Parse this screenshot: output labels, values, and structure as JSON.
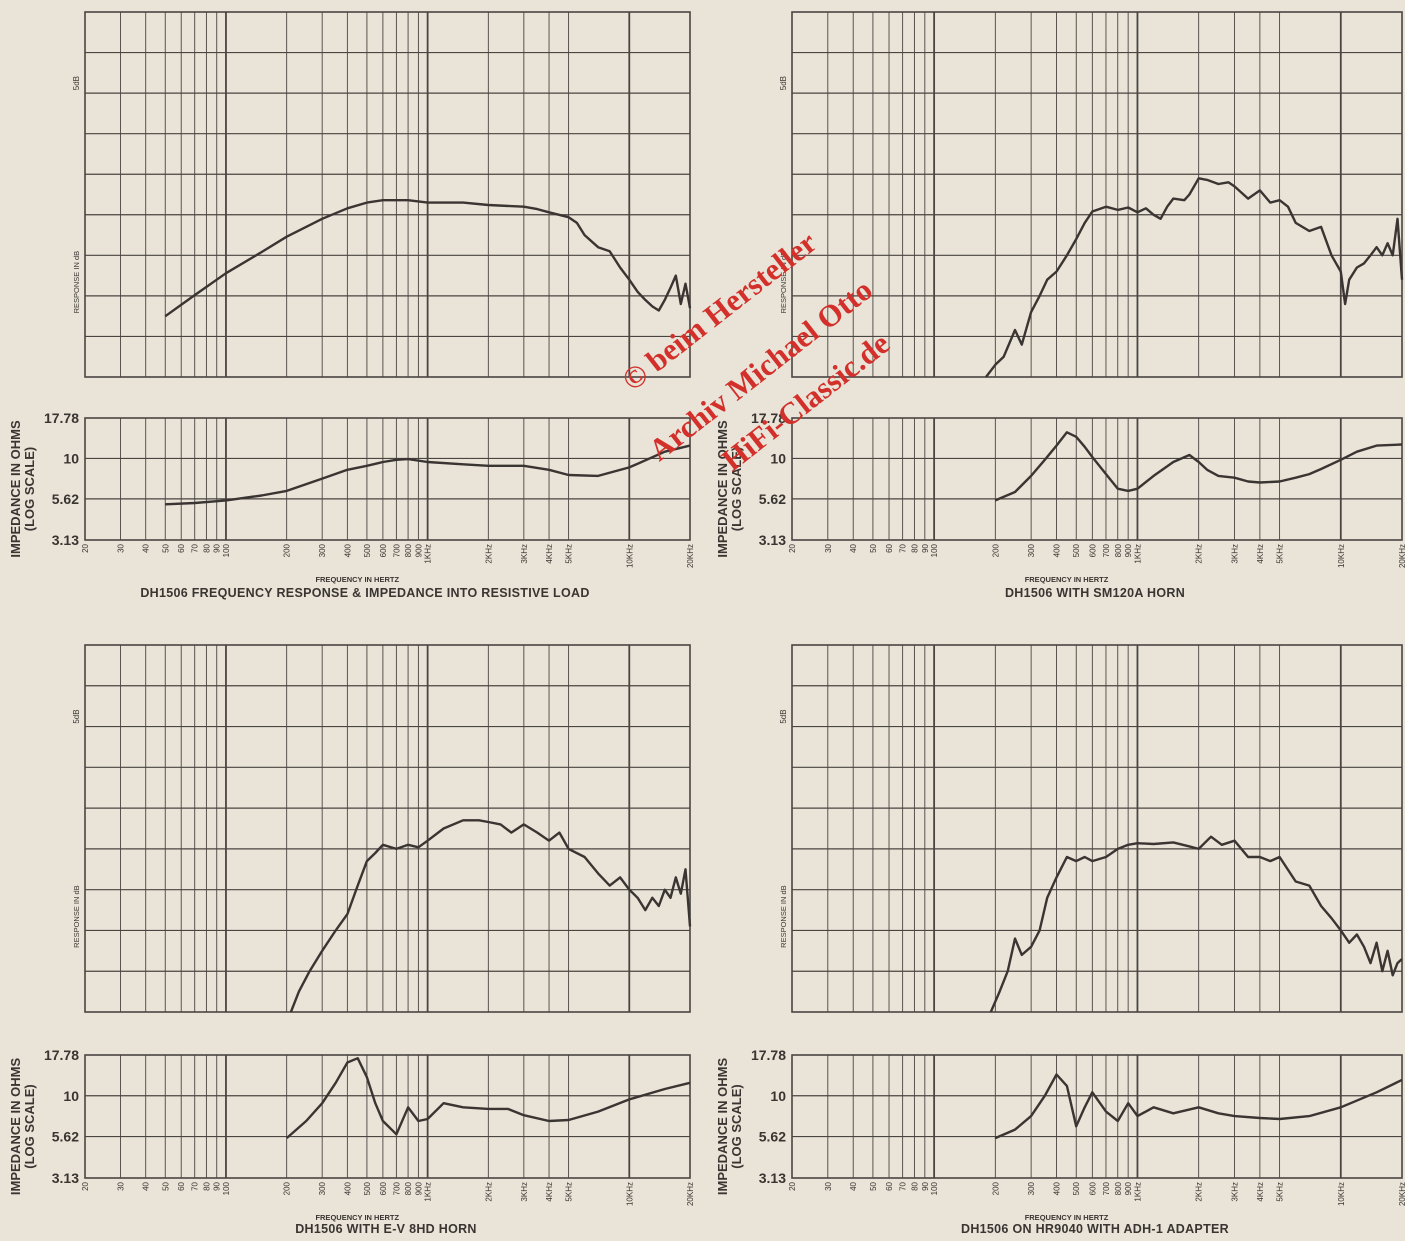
{
  "labels": {
    "freq_axis": "FREQUENCY IN HERTZ",
    "response_axis": "RESPONSE IN dB",
    "five_db": "5dB",
    "imp_axis_line1": "IMPEDANCE IN OHMS",
    "imp_axis_line2": "(LOG SCALE)"
  },
  "watermark": {
    "line1": "© beim Hersteller",
    "line2": "Archiv Michael Otto",
    "line3": "HiFi-Classic.de"
  },
  "colors": {
    "paper": "#e9e4d7",
    "grid": "#4a4442",
    "curve": "#3a3432",
    "watermark": "#d3302b"
  },
  "chart_data": [
    {
      "type": "line",
      "title": "DH1506 FREQUENCY RESPONSE & IMPEDANCE INTO RESISTIVE LOAD",
      "xscale": "log",
      "x_ticks": [
        20,
        30,
        40,
        50,
        60,
        70,
        80,
        90,
        100,
        200,
        300,
        400,
        500,
        600,
        700,
        800,
        900,
        1000,
        2000,
        3000,
        4000,
        5000,
        10000,
        20000
      ],
      "x_tick_labels": [
        "20",
        "30",
        "40",
        "50",
        "60",
        "70",
        "80",
        "90",
        "100",
        "200",
        "300",
        "400",
        "500",
        "600",
        "700",
        "800",
        "900",
        "1KHz",
        "2KHz",
        "3KHz",
        "4KHz",
        "5KHz",
        "10KHz",
        "20KHz"
      ],
      "xlim": [
        20,
        20000
      ],
      "response": {
        "ylabel": "RESPONSE IN dB",
        "divisions_5db": 7,
        "x": [
          50,
          70,
          100,
          150,
          200,
          300,
          400,
          500,
          600,
          700,
          800,
          1000,
          1500,
          2000,
          3000,
          3500,
          4000,
          5000,
          5500,
          6000,
          7000,
          8000,
          9000,
          10000,
          11000,
          12000,
          13000,
          14000,
          15000,
          16000,
          17000,
          18000,
          19000,
          20000
        ],
        "y": [
          7.5,
          10.1,
          12.8,
          15.4,
          17.3,
          19.5,
          20.8,
          21.5,
          21.8,
          21.8,
          21.8,
          21.5,
          21.5,
          21.2,
          21.0,
          20.7,
          20.3,
          19.7,
          19.0,
          17.5,
          16.0,
          15.5,
          13.5,
          12.0,
          10.5,
          9.5,
          8.7,
          8.2,
          9.5,
          11.0,
          12.5,
          9.0,
          11.5,
          8.5
        ]
      },
      "impedance": {
        "ylabel": "IMPEDANCE IN OHMS (LOG SCALE)",
        "y_ticks": [
          3.13,
          5.62,
          10,
          17.78
        ],
        "x": [
          50,
          70,
          100,
          150,
          200,
          300,
          400,
          500,
          600,
          700,
          800,
          1000,
          1500,
          2000,
          3000,
          4000,
          5000,
          7000,
          10000,
          15000,
          20000
        ],
        "y": [
          5.2,
          5.3,
          5.5,
          5.9,
          6.3,
          7.5,
          8.5,
          9.0,
          9.5,
          9.8,
          9.9,
          9.5,
          9.2,
          9.0,
          9.0,
          8.5,
          7.9,
          7.8,
          8.8,
          11.0,
          12.0
        ]
      }
    },
    {
      "type": "line",
      "title": "DH1506 WITH SM120A HORN",
      "xscale": "log",
      "x_ticks": [
        20,
        30,
        40,
        50,
        60,
        70,
        80,
        90,
        100,
        200,
        300,
        400,
        500,
        600,
        700,
        800,
        900,
        1000,
        2000,
        3000,
        4000,
        5000,
        10000,
        20000
      ],
      "x_tick_labels": [
        "20",
        "30",
        "40",
        "50",
        "60",
        "70",
        "80",
        "90",
        "100",
        "200",
        "300",
        "400",
        "500",
        "600",
        "700",
        "800",
        "900",
        "1KHz",
        "2KHz",
        "3KHz",
        "4KHz",
        "5KHz",
        "10KHz",
        "20KHz"
      ],
      "xlim": [
        20,
        20000
      ],
      "response": {
        "ylabel": "RESPONSE IN dB",
        "divisions_5db": 7,
        "x": [
          180,
          200,
          220,
          250,
          270,
          300,
          330,
          360,
          400,
          450,
          500,
          550,
          600,
          700,
          800,
          900,
          1000,
          1100,
          1200,
          1300,
          1400,
          1500,
          1700,
          1800,
          2000,
          2200,
          2500,
          2800,
          3000,
          3500,
          4000,
          4500,
          5000,
          5500,
          6000,
          7000,
          8000,
          9000,
          10000,
          10500,
          11000,
          12000,
          13000,
          14000,
          15000,
          16000,
          17000,
          18000,
          19000,
          20000
        ],
        "y": [
          0.0,
          1.5,
          2.5,
          5.8,
          4.0,
          8.0,
          10.0,
          12.0,
          13.0,
          15.0,
          17.0,
          19.0,
          20.4,
          21.0,
          20.6,
          20.9,
          20.3,
          20.8,
          20.0,
          19.5,
          21.0,
          22.0,
          21.8,
          22.5,
          24.5,
          24.3,
          23.8,
          24.0,
          23.5,
          22.0,
          23.0,
          21.5,
          21.8,
          21.0,
          19.0,
          18.0,
          18.5,
          15.0,
          13.0,
          9.0,
          12.0,
          13.5,
          14.0,
          15.0,
          16.0,
          15.0,
          16.5,
          15.0,
          19.5,
          12.0
        ]
      },
      "impedance": {
        "ylabel": "IMPEDANCE IN OHMS (LOG SCALE)",
        "y_ticks": [
          3.13,
          5.62,
          10,
          17.78
        ],
        "x": [
          200,
          250,
          300,
          350,
          400,
          450,
          500,
          550,
          600,
          700,
          800,
          900,
          1000,
          1200,
          1500,
          1800,
          2000,
          2200,
          2500,
          3000,
          3500,
          4000,
          5000,
          6000,
          7000,
          8000,
          10000,
          12000,
          15000,
          20000
        ],
        "y": [
          5.5,
          6.2,
          7.8,
          9.8,
          12.0,
          14.5,
          13.6,
          11.8,
          10.2,
          8.0,
          6.5,
          6.3,
          6.5,
          7.8,
          9.5,
          10.5,
          9.5,
          8.5,
          7.8,
          7.6,
          7.2,
          7.1,
          7.2,
          7.6,
          8.0,
          8.6,
          9.8,
          11.0,
          12.0,
          12.2
        ]
      }
    },
    {
      "type": "line",
      "title": "DH1506 WITH E-V 8HD HORN",
      "xscale": "log",
      "x_ticks": [
        20,
        30,
        40,
        50,
        60,
        70,
        80,
        90,
        100,
        200,
        300,
        400,
        500,
        600,
        700,
        800,
        900,
        1000,
        2000,
        3000,
        4000,
        5000,
        10000,
        20000
      ],
      "x_tick_labels": [
        "20",
        "30",
        "40",
        "50",
        "60",
        "70",
        "80",
        "90",
        "100",
        "200",
        "300",
        "400",
        "500",
        "600",
        "700",
        "800",
        "900",
        "1KHz",
        "2KHz",
        "3KHz",
        "4KHz",
        "5KHz",
        "10KHz",
        "20KHz"
      ],
      "xlim": [
        20,
        20000
      ],
      "response": {
        "ylabel": "RESPONSE IN dB",
        "divisions_5db": 7,
        "x": [
          210,
          230,
          260,
          300,
          350,
          400,
          450,
          500,
          550,
          600,
          700,
          800,
          900,
          1000,
          1200,
          1500,
          1800,
          2000,
          2300,
          2600,
          3000,
          3500,
          4000,
          4500,
          5000,
          6000,
          7000,
          8000,
          9000,
          10000,
          11000,
          12000,
          13000,
          14000,
          15000,
          16000,
          17000,
          18000,
          19000,
          20000
        ],
        "y": [
          0.0,
          2.5,
          5.0,
          7.5,
          10.0,
          12.0,
          15.5,
          18.5,
          19.5,
          20.5,
          20.0,
          20.5,
          20.2,
          21.0,
          22.5,
          23.5,
          23.5,
          23.3,
          23.0,
          22.0,
          23.0,
          22.0,
          21.0,
          22.0,
          20.0,
          19.0,
          17.0,
          15.5,
          16.5,
          15.0,
          14.0,
          12.5,
          14.0,
          13.0,
          15.0,
          14.0,
          16.5,
          14.5,
          17.5,
          10.5
        ]
      },
      "impedance": {
        "ylabel": "IMPEDANCE IN OHMS (LOG SCALE)",
        "y_ticks": [
          3.13,
          5.62,
          10,
          17.78
        ],
        "x": [
          200,
          250,
          300,
          350,
          400,
          450,
          500,
          550,
          600,
          700,
          800,
          900,
          1000,
          1200,
          1500,
          2000,
          2500,
          3000,
          4000,
          5000,
          7000,
          10000,
          15000,
          20000
        ],
        "y": [
          5.5,
          7.0,
          9.0,
          12.0,
          16.0,
          17.0,
          13.0,
          9.0,
          7.0,
          5.8,
          8.5,
          7.0,
          7.2,
          9.0,
          8.5,
          8.3,
          8.3,
          7.6,
          7.0,
          7.1,
          8.0,
          9.5,
          11.0,
          12.0
        ]
      }
    },
    {
      "type": "line",
      "title": "DH1506 ON HR9040 WITH ADH-1 ADAPTER",
      "xscale": "log",
      "x_ticks": [
        20,
        30,
        40,
        50,
        60,
        70,
        80,
        90,
        100,
        200,
        300,
        400,
        500,
        600,
        700,
        800,
        900,
        1000,
        2000,
        3000,
        4000,
        5000,
        10000,
        20000
      ],
      "x_tick_labels": [
        "20",
        "30",
        "40",
        "50",
        "60",
        "70",
        "80",
        "90",
        "100",
        "200",
        "300",
        "400",
        "500",
        "600",
        "700",
        "800",
        "900",
        "1KHz",
        "2KHz",
        "3KHz",
        "4KHz",
        "5KHz",
        "10KHz",
        "20KHz"
      ],
      "xlim": [
        20,
        20000
      ],
      "response": {
        "ylabel": "RESPONSE IN dB",
        "divisions_5db": 7,
        "x": [
          190,
          210,
          230,
          250,
          270,
          300,
          330,
          360,
          400,
          450,
          500,
          550,
          600,
          700,
          800,
          900,
          1000,
          1200,
          1500,
          1800,
          2000,
          2300,
          2600,
          3000,
          3500,
          4000,
          4500,
          5000,
          6000,
          7000,
          8000,
          9000,
          10000,
          11000,
          12000,
          13000,
          14000,
          15000,
          16000,
          17000,
          18000,
          19000,
          20000
        ],
        "y": [
          0.0,
          2.5,
          5.0,
          9.0,
          7.0,
          8.0,
          10.0,
          14.0,
          16.5,
          19.0,
          18.5,
          19.0,
          18.5,
          19.0,
          20.0,
          20.5,
          20.7,
          20.6,
          20.8,
          20.3,
          20.0,
          21.5,
          20.5,
          21.0,
          19.0,
          19.0,
          18.5,
          19.0,
          16.0,
          15.5,
          13.0,
          11.5,
          10.0,
          8.5,
          9.5,
          8.0,
          6.0,
          8.5,
          5.0,
          7.5,
          4.5,
          6.0,
          6.5
        ]
      },
      "impedance": {
        "ylabel": "IMPEDANCE IN OHMS (LOG SCALE)",
        "y_ticks": [
          3.13,
          5.62,
          10,
          17.78
        ],
        "x": [
          200,
          250,
          300,
          350,
          400,
          450,
          500,
          550,
          600,
          700,
          800,
          900,
          1000,
          1200,
          1500,
          2000,
          2500,
          3000,
          4000,
          5000,
          7000,
          10000,
          15000,
          20000
        ],
        "y": [
          5.5,
          6.2,
          7.5,
          10.0,
          13.5,
          11.5,
          6.5,
          8.5,
          10.5,
          8.0,
          7.0,
          9.0,
          7.5,
          8.5,
          7.8,
          8.5,
          7.8,
          7.5,
          7.3,
          7.2,
          7.5,
          8.5,
          10.5,
          12.5
        ]
      }
    }
  ]
}
